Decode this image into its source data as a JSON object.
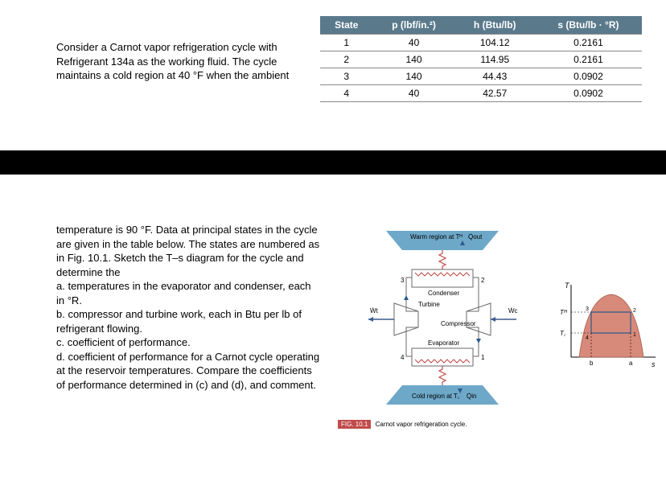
{
  "top_text": {
    "l1": "Consider a Carnot vapor refrigeration cycle with",
    "l2": "Refrigerant 134a as the working fluid.  The cycle",
    "l3": "maintains a cold region at 40 °F when the ambient"
  },
  "table": {
    "headers": [
      "State",
      "p (lbf/in.²)",
      "h (Btu/lb)",
      "s (Btu/lb · °R)"
    ],
    "rows": [
      [
        "1",
        "40",
        "104.12",
        "0.2161"
      ],
      [
        "2",
        "140",
        "114.95",
        "0.2161"
      ],
      [
        "3",
        "140",
        "44.43",
        "0.0902"
      ],
      [
        "4",
        "40",
        "42.57",
        "0.0902"
      ]
    ],
    "header_bg": "#5a7a8c",
    "header_fg": "#ffffff",
    "border_color": "#888888"
  },
  "bottom_text": {
    "p1": "temperature is 90 °F. Data at principal states in the cycle are given in the table below. The states are numbered as in Fig. 10.1. Sketch the T–s diagram for the cycle and determine the",
    "a": "a. temperatures in the evaporator and condenser, each in °R.",
    "b": "b. compressor and turbine work, each in Btu per lb of refrigerant flowing.",
    "c": "c. coefficient of performance.",
    "d": "d. coefficient of performance for a Carnot cycle operating at the reservoir temperatures. Compare the coefficients of performance determined in (c) and (d), and comment."
  },
  "cycle": {
    "warm_label": "Warm region at Tᴴ",
    "qout_label": "Q̇out",
    "condenser_label": "Condenser",
    "turbine_label": "Turbine",
    "compressor_label": "Compressor",
    "evaporator_label": "Evaporator",
    "cold_label": "Cold region at T꜀",
    "qin_label": "Q̇in",
    "wt_label": "Ẇt",
    "wc_label": "Ẇc",
    "state_labels": [
      "1",
      "2",
      "3",
      "4"
    ],
    "colors": {
      "warm_fill": "#6ea8c8",
      "cold_fill": "#6ea8c8",
      "component_fill": "#ffffff",
      "component_stroke": "#6a6a6a",
      "resistor": "#c14b4b",
      "arrow": "#3a5a8c"
    }
  },
  "ts_diagram": {
    "axes": {
      "y_label": "T",
      "x_label": "s",
      "a": "a",
      "b": "b"
    },
    "th_label": "Tᴴ",
    "tc_label": "T꜀",
    "colors": {
      "dome_fill": "#d88a7a",
      "dome_stroke": "#a85a4a",
      "cycle_stroke": "#2a5a8c",
      "axis": "#000000"
    },
    "state_labels": [
      "1",
      "2",
      "3",
      "4"
    ]
  },
  "caption": {
    "fig_label": "FIG. 10.1",
    "text": "Carnot vapor refrigeration cycle."
  }
}
